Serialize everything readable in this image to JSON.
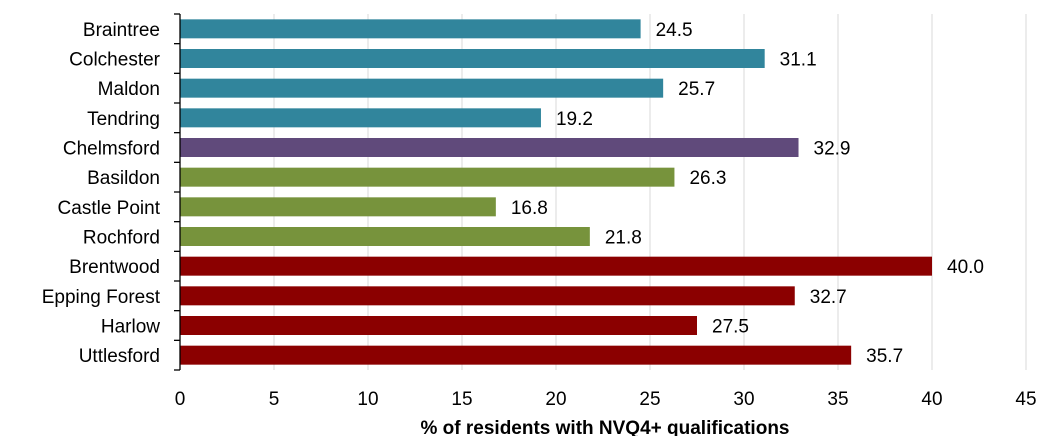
{
  "chart_data": {
    "type": "bar",
    "orientation": "horizontal",
    "categories": [
      "Braintree",
      "Colchester",
      "Maldon",
      "Tendring",
      "Chelmsford",
      "Basildon",
      "Castle Point",
      "Rochford",
      "Brentwood",
      "Epping Forest",
      "Harlow",
      "Uttlesford"
    ],
    "values": [
      24.5,
      31.1,
      25.7,
      19.2,
      32.9,
      26.3,
      16.8,
      21.8,
      40.0,
      32.7,
      27.5,
      35.7
    ],
    "value_labels": [
      "24.5",
      "31.1",
      "25.7",
      "19.2",
      "32.9",
      "26.3",
      "16.8",
      "21.8",
      "40.0",
      "32.7",
      "27.5",
      "35.7"
    ],
    "bar_colors": [
      "#31859c",
      "#31859c",
      "#31859c",
      "#31859c",
      "#604a7b",
      "#77933c",
      "#77933c",
      "#77933c",
      "#8b0000",
      "#8b0000",
      "#8b0000",
      "#8b0000"
    ],
    "xlabel": "% of residents with NVQ4+ qualifications",
    "xlim": [
      0,
      45
    ],
    "xticks": [
      0,
      5,
      10,
      15,
      20,
      25,
      30,
      35,
      40,
      45
    ],
    "xtick_labels": [
      "0",
      "5",
      "10",
      "15",
      "20",
      "25",
      "30",
      "35",
      "40",
      "45"
    ],
    "grid": "vertical",
    "legend": "none"
  }
}
